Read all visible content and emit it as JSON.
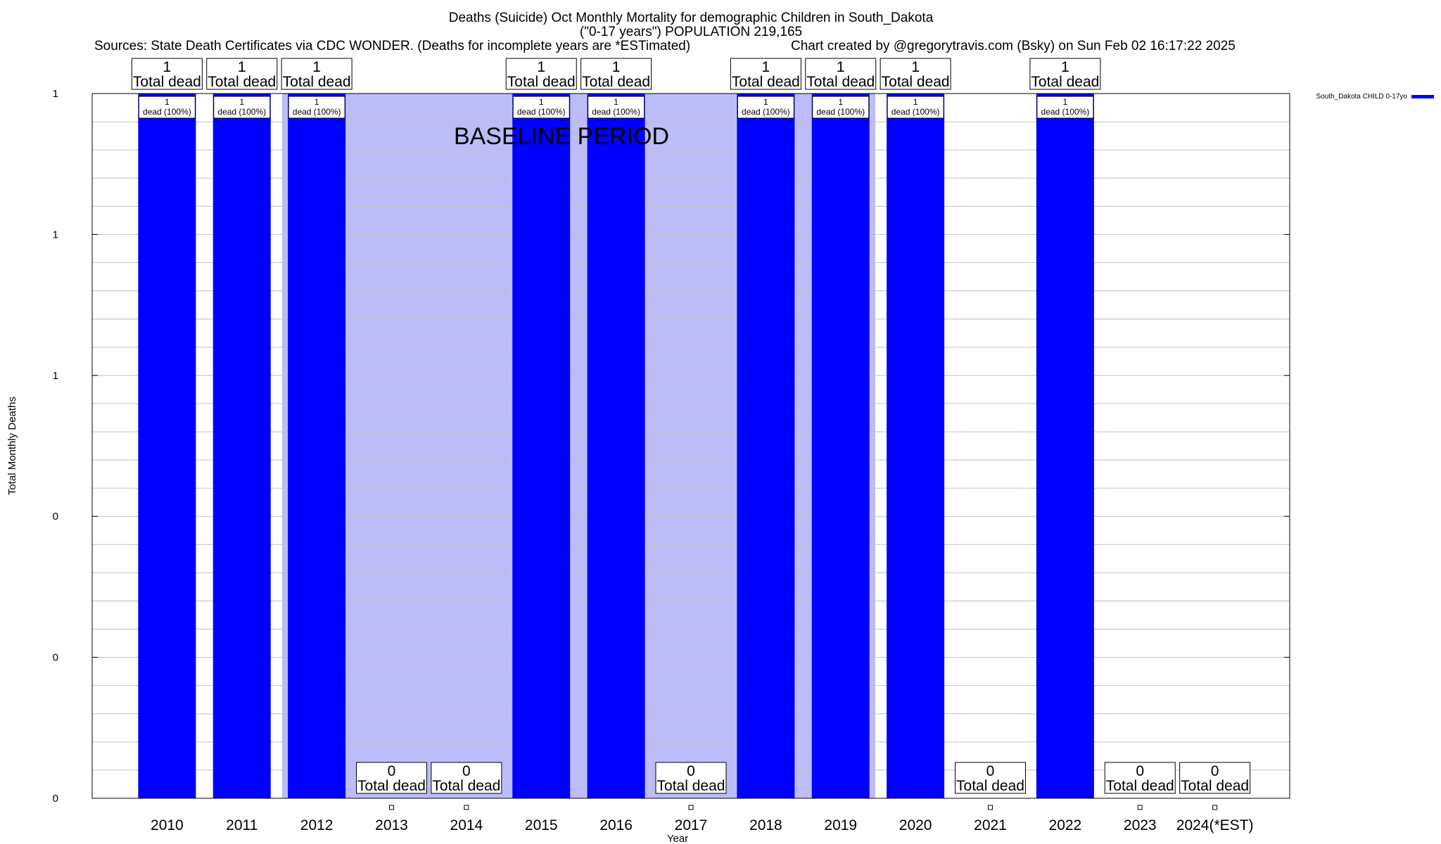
{
  "chart_data": {
    "type": "bar",
    "title": "Deaths (Suicide) Oct Monthly Mortality for demographic Children in South_Dakota",
    "subtitle": "(\"0-17 years\") POPULATION 219,165",
    "sources": "Sources: State Death Certificates via CDC WONDER. (Deaths for incomplete years are *ESTimated)",
    "credit": "Chart created by @gregorytravis.com (Bsky) on Sun Feb 02 16:17:22 2025",
    "xlabel": "Year",
    "ylabel": "Total Monthly Deaths",
    "ylim": [
      0,
      1
    ],
    "y_tick_labels": [
      "0",
      "0",
      "0",
      "1",
      "1",
      "1"
    ],
    "grid": true,
    "legend_position": "top-right",
    "baseline_label": "BASELINE PERIOD",
    "baseline_range": [
      "2012",
      "2019"
    ],
    "categories": [
      "2010",
      "2011",
      "2012",
      "2013",
      "2014",
      "2015",
      "2016",
      "2017",
      "2018",
      "2019",
      "2020",
      "2021",
      "2022",
      "2023",
      "2024(*EST)"
    ],
    "series": [
      {
        "name": "South_Dakota CHILD 0-17yo",
        "color": "#0000ff",
        "values": [
          1,
          1,
          1,
          0,
          0,
          1,
          1,
          0,
          1,
          1,
          1,
          0,
          1,
          0,
          0
        ]
      }
    ],
    "total_label_text": "Total dead",
    "bar_label_text": "dead (100%)",
    "baseline_color": "#bcbcf8"
  }
}
